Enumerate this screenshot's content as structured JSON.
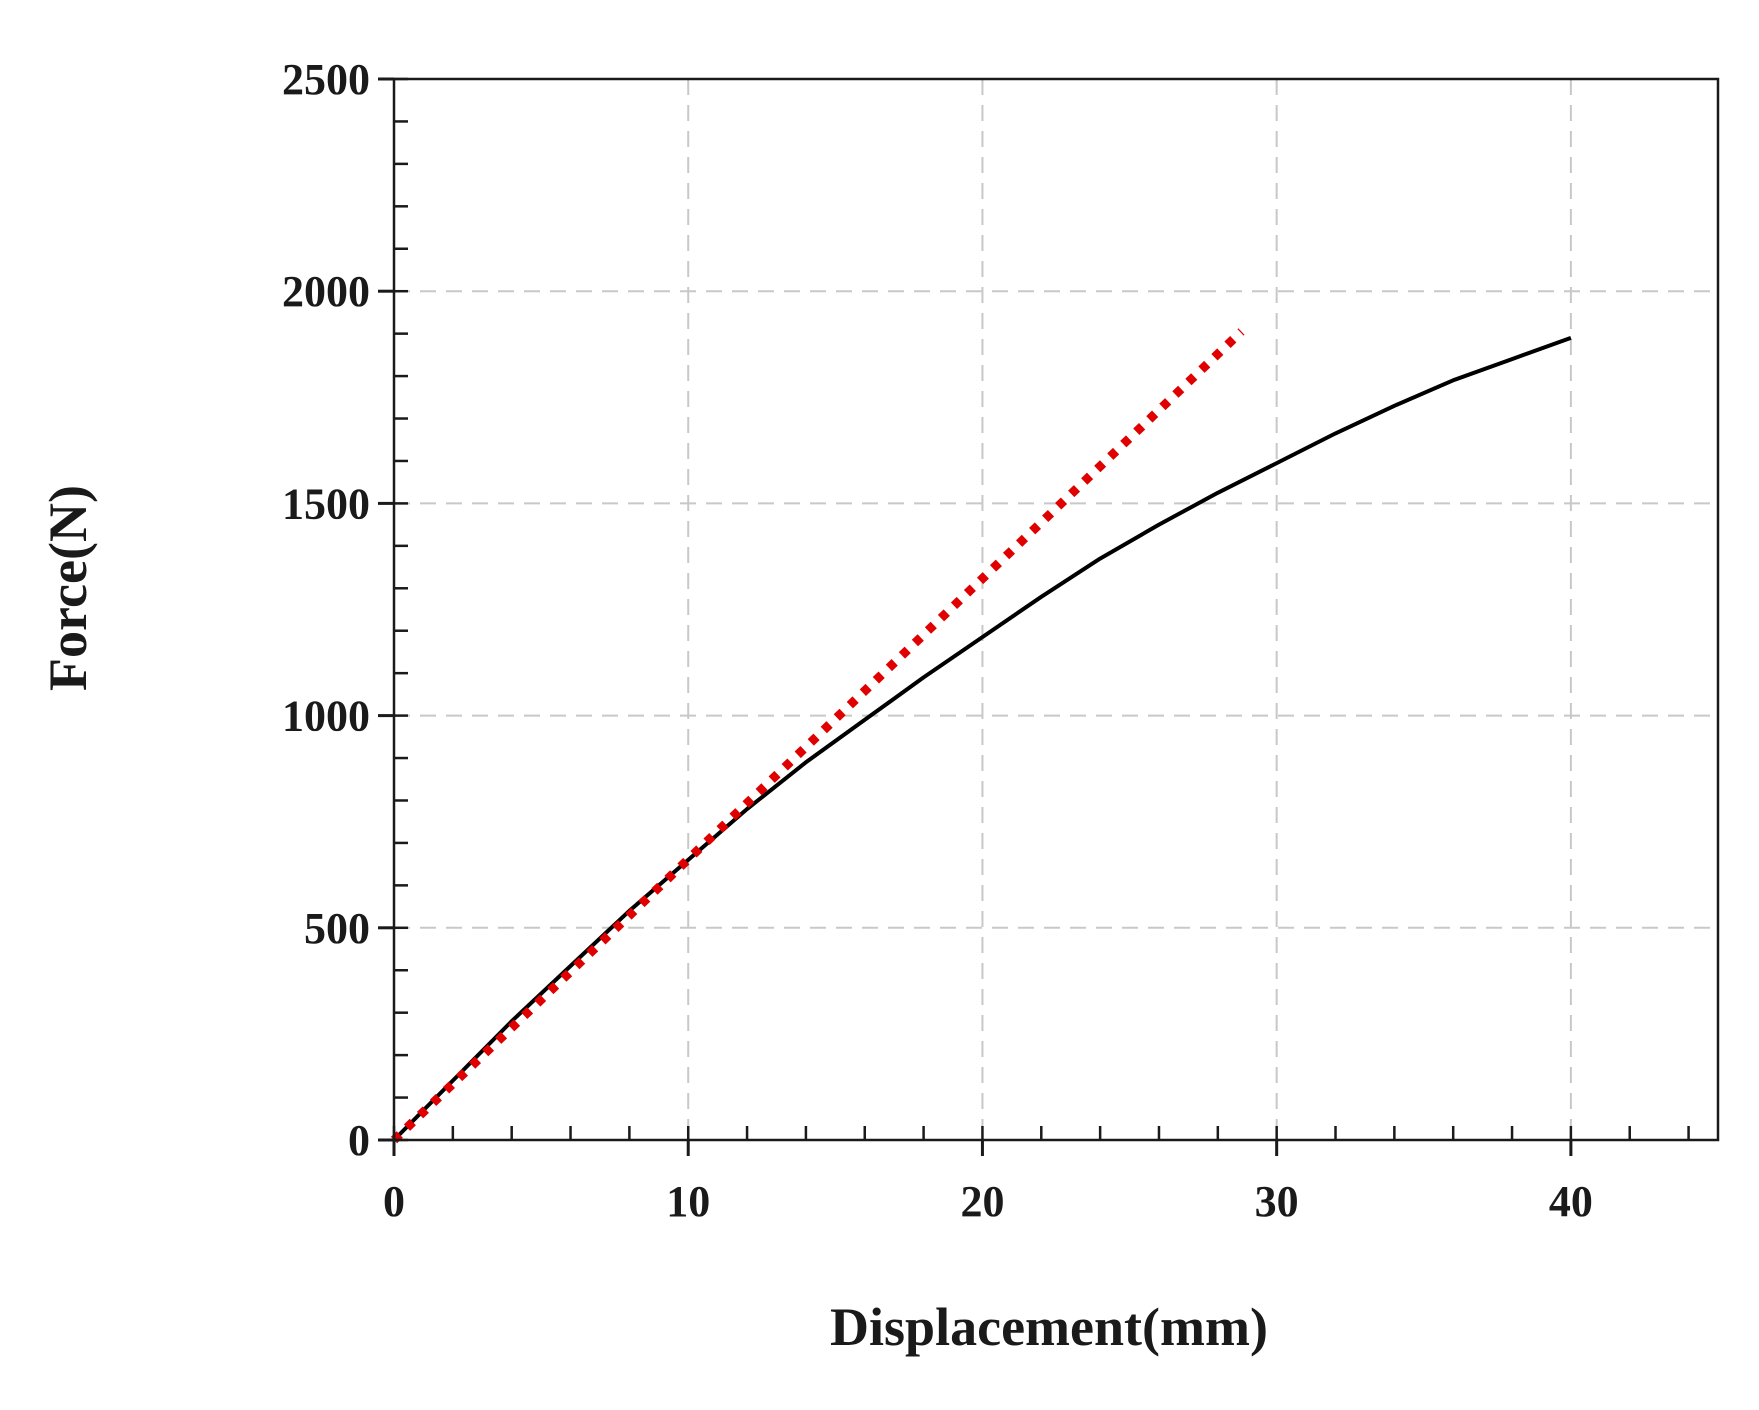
{
  "chart_data": {
    "type": "line",
    "title": "",
    "xlabel": "Displacement(mm)",
    "ylabel": "Force(N)",
    "xlim": [
      0,
      45
    ],
    "ylim": [
      0,
      2500
    ],
    "x_ticks": [
      0,
      10,
      20,
      30,
      40
    ],
    "y_ticks": [
      0,
      500,
      1000,
      1500,
      2000,
      2500
    ],
    "x_minor_step": 2,
    "y_minor_step": 100,
    "grid": true,
    "series": [
      {
        "style": "solid",
        "color": "#000000",
        "x": [
          0,
          2,
          4,
          6,
          8,
          10,
          12,
          14,
          16,
          18,
          20,
          22,
          24,
          26,
          28,
          30,
          32,
          34,
          36,
          38,
          40
        ],
        "y": [
          0,
          140,
          280,
          410,
          540,
          660,
          780,
          890,
          990,
          1090,
          1185,
          1280,
          1370,
          1450,
          1525,
          1595,
          1665,
          1730,
          1790,
          1840,
          1890
        ]
      },
      {
        "style": "dotted",
        "color": "#e00000",
        "x": [
          0,
          28.8
        ],
        "y": [
          0,
          1905
        ]
      }
    ]
  }
}
